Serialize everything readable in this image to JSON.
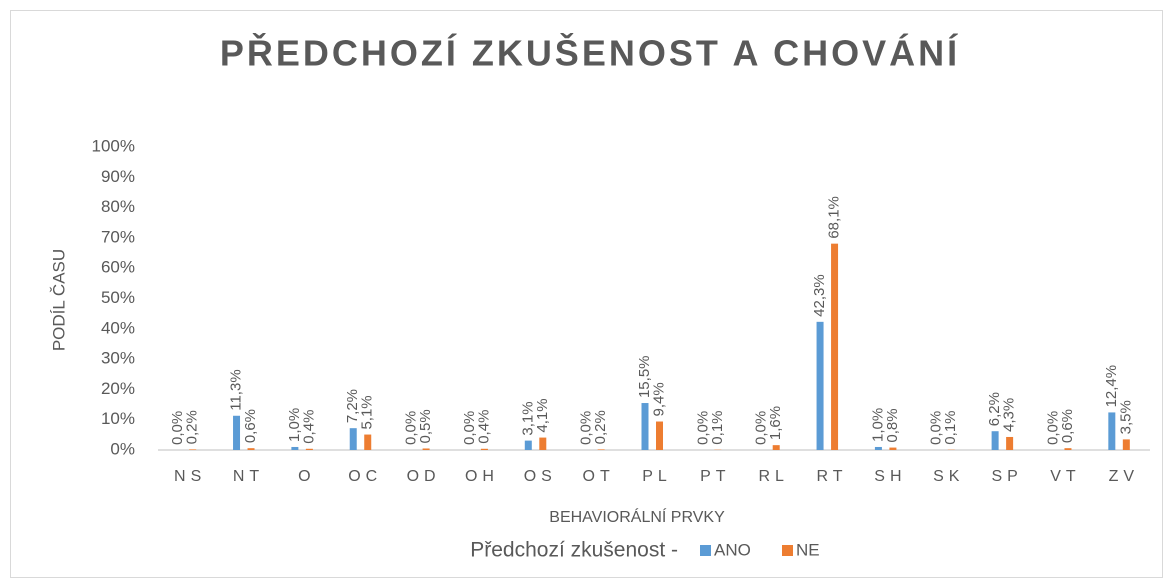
{
  "chart_data": {
    "type": "bar",
    "title": "PŘEDCHOZÍ ZKUŠENOST A CHOVÁNÍ",
    "x_label": "BEHAVIORÁLNÍ PRVKY",
    "y_label": "PODÍL ČASU",
    "legend_title": "Předchozí zkušenost -",
    "legend": "bottom",
    "grid": false,
    "categories": [
      "NS",
      "NT",
      "O",
      "OC",
      "OD",
      "OH",
      "OS",
      "OT",
      "PL",
      "PT",
      "RL",
      "RT",
      "SH",
      "SK",
      "SP",
      "VT",
      "ZV"
    ],
    "series": [
      {
        "name": "ANO",
        "color": "#5b9bd5",
        "values": [
          0.0,
          11.3,
          1.0,
          7.2,
          0.0,
          0.0,
          3.1,
          0.0,
          15.5,
          0.0,
          0.0,
          42.3,
          1.0,
          0.0,
          6.2,
          0.0,
          12.4
        ],
        "value_labels": [
          "0,0%",
          "11,3%",
          "1,0%",
          "7,2%",
          "0,0%",
          "0,0%",
          "3,1%",
          "0,0%",
          "15,5%",
          "0,0%",
          "0,0%",
          "42,3%",
          "1,0%",
          "0,0%",
          "6,2%",
          "0,0%",
          "12,4%"
        ]
      },
      {
        "name": "NE",
        "color": "#ed7d31",
        "values": [
          0.2,
          0.6,
          0.4,
          5.1,
          0.5,
          0.4,
          4.1,
          0.2,
          9.4,
          0.1,
          1.6,
          68.1,
          0.8,
          0.1,
          4.3,
          0.6,
          3.5
        ],
        "value_labels": [
          "0,2%",
          "0,6%",
          "0,4%",
          "5,1%",
          "0,5%",
          "0,4%",
          "4,1%",
          "0,2%",
          "9,4%",
          "0,1%",
          "1,6%",
          "68,1%",
          "0,8%",
          "0,1%",
          "4,3%",
          "0,6%",
          "3,5%"
        ]
      }
    ],
    "ylim": [
      0,
      100
    ],
    "yticks": [
      {
        "value": 0,
        "label": "0%"
      },
      {
        "value": 10,
        "label": "10%"
      },
      {
        "value": 20,
        "label": "20%"
      },
      {
        "value": 30,
        "label": "30%"
      },
      {
        "value": 40,
        "label": "40%"
      },
      {
        "value": 50,
        "label": "50%"
      },
      {
        "value": 60,
        "label": "60%"
      },
      {
        "value": 70,
        "label": "70%"
      },
      {
        "value": 80,
        "label": "80%"
      },
      {
        "value": 90,
        "label": "90%"
      },
      {
        "value": 100,
        "label": "100%"
      }
    ]
  }
}
